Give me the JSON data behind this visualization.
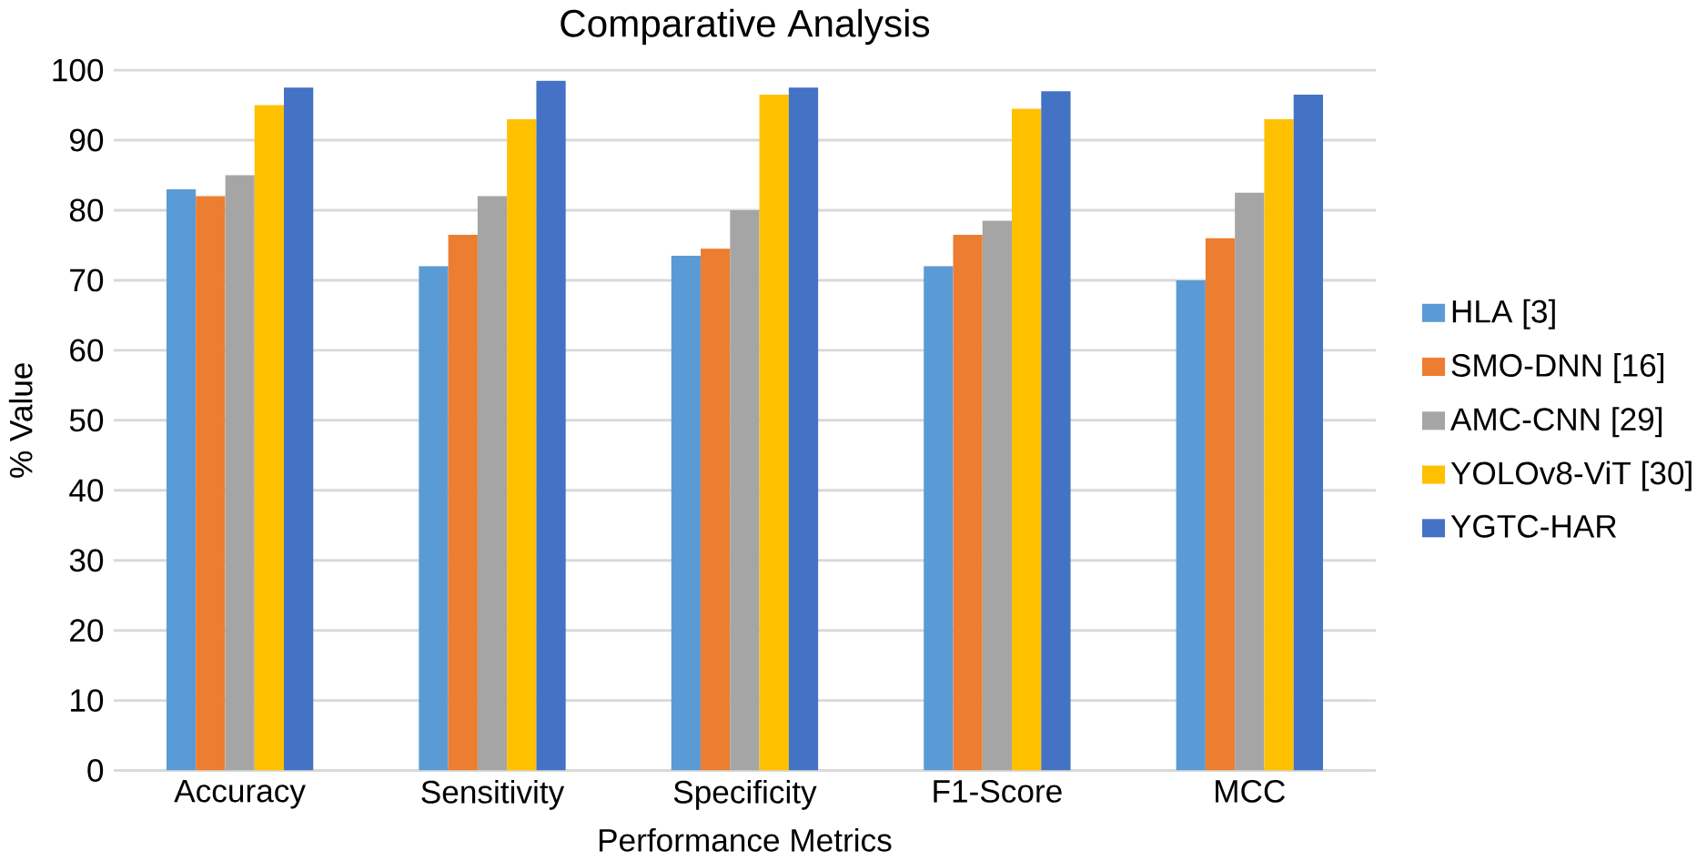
{
  "chart_data": {
    "type": "bar",
    "title": "Comparative Analysis",
    "xlabel": "Performance Metrics",
    "ylabel": "% Value",
    "categories": [
      "Accuracy",
      "Sensitivity",
      "Specificity",
      "F1-Score",
      "MCC"
    ],
    "series": [
      {
        "name": "HLA [3]",
        "color": "#5b9bd5",
        "values": [
          83,
          72,
          73.5,
          72,
          70
        ]
      },
      {
        "name": "SMO-DNN [16]",
        "color": "#ed7d31",
        "values": [
          82,
          76.5,
          74.5,
          76.5,
          76
        ]
      },
      {
        "name": "AMC-CNN [29]",
        "color": "#a5a5a5",
        "values": [
          85,
          82,
          80,
          78.5,
          82.5
        ]
      },
      {
        "name": "YOLOv8-ViT [30]",
        "color": "#ffc000",
        "values": [
          95,
          93,
          96.5,
          94.5,
          93
        ]
      },
      {
        "name": "YGTC-HAR",
        "color": "#4472c4",
        "values": [
          97.5,
          98.5,
          97.5,
          97,
          96.5
        ]
      }
    ],
    "ylim": [
      0,
      100
    ],
    "yticks": [
      0,
      10,
      20,
      30,
      40,
      50,
      60,
      70,
      80,
      90,
      100
    ],
    "grid": "y",
    "legend": "right"
  }
}
